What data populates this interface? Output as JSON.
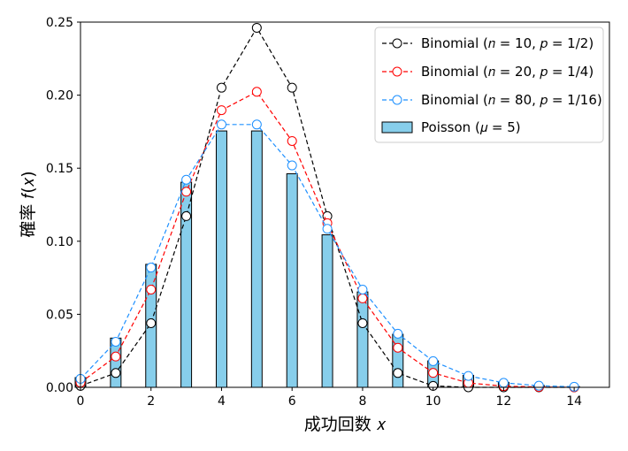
{
  "chart_data": {
    "type": "bar+line",
    "xlabel": "成功回数 𝑥",
    "ylabel": "確率 𝑓(𝑥)",
    "xlim": [
      0,
      15
    ],
    "ylim": [
      0,
      0.25
    ],
    "xticks": [
      0,
      2,
      4,
      6,
      8,
      10,
      12,
      14
    ],
    "yticks": [
      0.0,
      0.05,
      0.1,
      0.15,
      0.2,
      0.25
    ],
    "ytick_labels": [
      "0.00",
      "0.05",
      "0.10",
      "0.15",
      "0.20",
      "0.25"
    ],
    "bars": {
      "name": "Poisson (𝜇 = 5)",
      "color": "#87ceeb",
      "x": [
        0,
        1,
        2,
        3,
        4,
        5,
        6,
        7,
        8,
        9,
        10,
        11,
        12,
        13,
        14
      ],
      "values": [
        0.0067,
        0.0337,
        0.0842,
        0.1404,
        0.1755,
        0.1755,
        0.1462,
        0.1044,
        0.0653,
        0.0363,
        0.0181,
        0.0082,
        0.0034,
        0.0013,
        0.0005
      ]
    },
    "series": [
      {
        "name": "Binomial (𝑛 = 10, 𝑝 = 1/2)",
        "color": "#000000",
        "x": [
          0,
          1,
          2,
          3,
          4,
          5,
          6,
          7,
          8,
          9,
          10,
          11,
          12,
          13,
          14
        ],
        "values": [
          0.001,
          0.0098,
          0.0439,
          0.1172,
          0.2051,
          0.2461,
          0.2051,
          0.1172,
          0.0439,
          0.0098,
          0.001,
          0,
          0,
          0,
          0
        ]
      },
      {
        "name": "Binomial (𝑛 = 20, 𝑝 = 1/4)",
        "color": "#ff0000",
        "x": [
          0,
          1,
          2,
          3,
          4,
          5,
          6,
          7,
          8,
          9,
          10,
          11,
          12,
          13,
          14
        ],
        "values": [
          0.0032,
          0.0211,
          0.0669,
          0.1339,
          0.1897,
          0.2023,
          0.1686,
          0.1124,
          0.0609,
          0.0271,
          0.0099,
          0.003,
          0.0008,
          0.0002,
          0.0
        ]
      },
      {
        "name": "Binomial (𝑛 = 80, 𝑝 = 1/16)",
        "color": "#1e90ff",
        "x": [
          0,
          1,
          2,
          3,
          4,
          5,
          6,
          7,
          8,
          9,
          10,
          11,
          12,
          13,
          14
        ],
        "values": [
          0.0058,
          0.0312,
          0.082,
          0.1421,
          0.1799,
          0.1799,
          0.1519,
          0.1085,
          0.0669,
          0.0367,
          0.0179,
          0.0078,
          0.0031,
          0.0011,
          0.0004
        ]
      }
    ],
    "legend": {
      "position": "top-right",
      "entries": [
        "Binomial (𝑛 = 10, 𝑝 = 1/2)",
        "Binomial (𝑛 = 20, 𝑝 = 1/4)",
        "Binomial (𝑛 = 80, 𝑝 = 1/16)",
        "Poisson (𝜇 = 5)"
      ]
    },
    "grid": false
  }
}
